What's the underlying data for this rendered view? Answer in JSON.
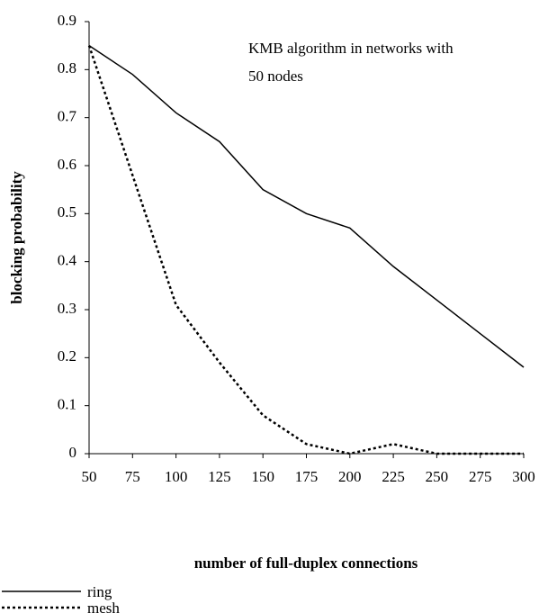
{
  "chart_data": {
    "type": "line",
    "annotation": [
      "KMB algorithm in networks with",
      "50 nodes"
    ],
    "xlabel": "number of full-duplex connections",
    "ylabel": "blocking probability",
    "x": [
      50,
      75,
      100,
      125,
      150,
      175,
      200,
      225,
      250,
      275,
      300
    ],
    "series": [
      {
        "name": "ring",
        "color": "#000000",
        "dash": "none",
        "values": [
          0.85,
          0.79,
          0.71,
          0.65,
          0.55,
          0.5,
          0.47,
          0.39,
          0.32,
          0.25,
          0.18
        ]
      },
      {
        "name": "mesh",
        "color": "#000000",
        "dash": "3,3",
        "values": [
          0.85,
          0.58,
          0.31,
          0.19,
          0.08,
          0.02,
          0.0,
          0.02,
          0.0,
          0.0,
          0.0
        ]
      }
    ],
    "xlim": [
      50,
      300
    ],
    "xticks": [
      50,
      75,
      100,
      125,
      150,
      175,
      200,
      225,
      250,
      275,
      300
    ],
    "ylim": [
      0,
      0.9
    ],
    "yticks": [
      0,
      0.1,
      0.2,
      0.3,
      0.4,
      0.5,
      0.6,
      0.7,
      0.8,
      0.9
    ],
    "grid": false,
    "legend": "bottom-left"
  }
}
